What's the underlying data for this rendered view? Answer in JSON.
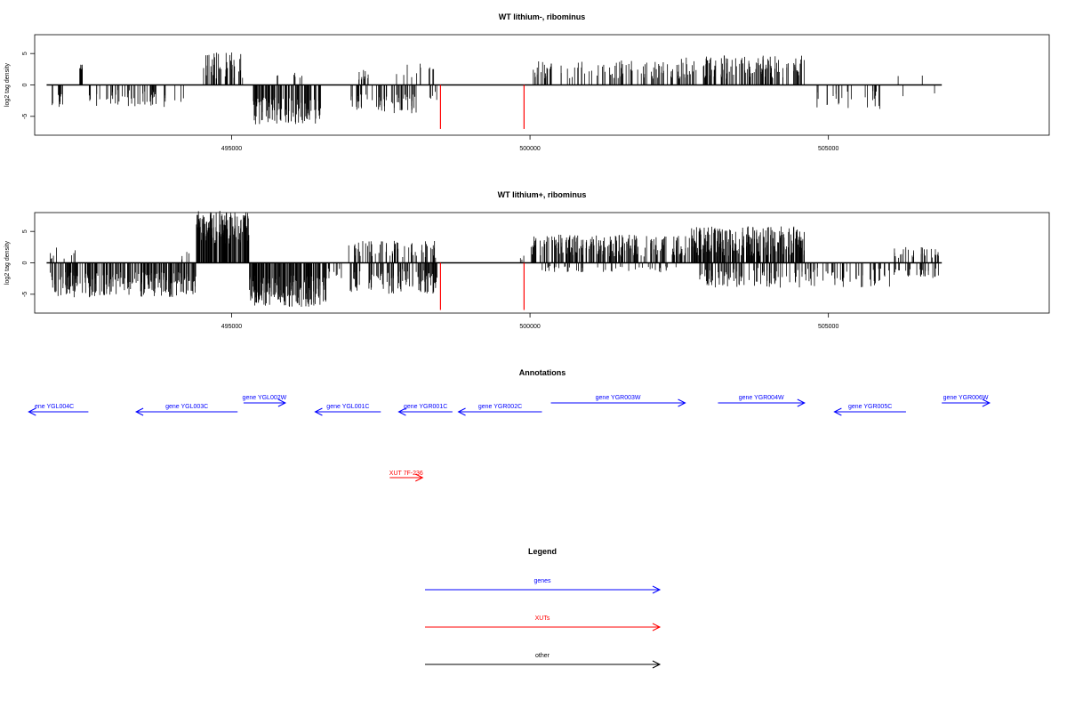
{
  "colors": {
    "gene": "#0000ff",
    "xut": "#ff0000",
    "other": "#000000",
    "bar": "#000000",
    "marker": "#ff0000"
  },
  "chart_data": [
    {
      "type": "bar",
      "title": "WT lithium-, ribominus",
      "xlabel": "",
      "ylabel": "log2 tag density",
      "xlim": [
        491700,
        508700
      ],
      "ylim": [
        -8,
        8
      ],
      "x_ticks": [
        495000,
        500000,
        505000
      ],
      "x_tick_labels": [
        "495000",
        "500000",
        "505000"
      ],
      "y_ticks": [
        5,
        0,
        -5
      ],
      "y_tick_labels": [
        "5",
        "0",
        "-5"
      ],
      "baseline": 0,
      "baseline_extent": [
        491900,
        506900
      ],
      "marker_lines": [
        {
          "x": 498500,
          "y": -7
        },
        {
          "x": 499900,
          "y": -7
        }
      ],
      "segments": [
        {
          "start": 491950,
          "end": 492200,
          "sign": -1,
          "min": 1.0,
          "max": 3.5,
          "density": 0.06
        },
        {
          "start": 492450,
          "end": 492500,
          "sign": 1,
          "min": 2.0,
          "max": 3.4,
          "density": 0.4
        },
        {
          "start": 492600,
          "end": 494200,
          "sign": -1,
          "min": 0.8,
          "max": 3.5,
          "density": 0.05
        },
        {
          "start": 494500,
          "end": 495200,
          "sign": 1,
          "min": 1.0,
          "max": 5.2,
          "density": 0.09
        },
        {
          "start": 495350,
          "end": 496500,
          "sign": -1,
          "min": 2.0,
          "max": 6.3,
          "density": 0.14
        },
        {
          "start": 495650,
          "end": 496200,
          "sign": 1,
          "min": 0.8,
          "max": 2.5,
          "density": 0.02
        },
        {
          "start": 497000,
          "end": 497300,
          "sign": 1,
          "min": 0.8,
          "max": 2.5,
          "density": 0.05
        },
        {
          "start": 497000,
          "end": 497300,
          "sign": -1,
          "min": 1.5,
          "max": 4.0,
          "density": 0.08
        },
        {
          "start": 497350,
          "end": 498100,
          "sign": -1,
          "min": 1.5,
          "max": 4.5,
          "density": 0.08
        },
        {
          "start": 497600,
          "end": 498400,
          "sign": 1,
          "min": 0.8,
          "max": 3.5,
          "density": 0.02
        },
        {
          "start": 498300,
          "end": 498450,
          "sign": -1,
          "min": 1.0,
          "max": 2.5,
          "density": 0.05
        },
        {
          "start": 500050,
          "end": 502800,
          "sign": 1,
          "min": 1.0,
          "max": 4.0,
          "density": 0.05
        },
        {
          "start": 502000,
          "end": 502800,
          "sign": 1,
          "min": 1.0,
          "max": 4.5,
          "density": 0.03
        },
        {
          "start": 502900,
          "end": 504600,
          "sign": 1,
          "min": 1.0,
          "max": 4.8,
          "density": 0.1
        },
        {
          "start": 504600,
          "end": 505900,
          "sign": -1,
          "min": 0.8,
          "max": 4.0,
          "density": 0.03
        },
        {
          "start": 506100,
          "end": 506800,
          "sign": 1,
          "min": 1.0,
          "max": 2.5,
          "density": 0.005
        },
        {
          "start": 506200,
          "end": 506800,
          "sign": -1,
          "min": 1.0,
          "max": 2.5,
          "density": 0.005
        }
      ]
    },
    {
      "type": "bar",
      "title": "WT lithium+, ribominus",
      "xlabel": "",
      "ylabel": "log2 tag density",
      "xlim": [
        491700,
        508700
      ],
      "ylim": [
        -8,
        8
      ],
      "x_ticks": [
        495000,
        500000,
        505000
      ],
      "x_tick_labels": [
        "495000",
        "500000",
        "505000"
      ],
      "y_ticks": [
        5,
        0,
        -5
      ],
      "y_tick_labels": [
        "5",
        "0",
        "-5"
      ],
      "baseline": 0,
      "baseline_extent": [
        491900,
        506900
      ],
      "marker_lines": [
        {
          "x": 498500,
          "y": -7.5
        },
        {
          "x": 499900,
          "y": -7.5
        }
      ],
      "segments": [
        {
          "start": 491950,
          "end": 492400,
          "sign": 1,
          "min": 0.5,
          "max": 2.5,
          "density": 0.03
        },
        {
          "start": 491950,
          "end": 494400,
          "sign": -1,
          "min": 1.5,
          "max": 5.5,
          "density": 0.14
        },
        {
          "start": 494100,
          "end": 494300,
          "sign": 1,
          "min": 0.5,
          "max": 1.8,
          "density": 0.03
        },
        {
          "start": 494400,
          "end": 495300,
          "sign": 1,
          "min": 3.0,
          "max": 8.3,
          "density": 0.25
        },
        {
          "start": 495300,
          "end": 496600,
          "sign": -1,
          "min": 2.0,
          "max": 7.0,
          "density": 0.2
        },
        {
          "start": 496600,
          "end": 496850,
          "sign": -1,
          "min": 0.8,
          "max": 2.5,
          "density": 0.05
        },
        {
          "start": 496950,
          "end": 498450,
          "sign": 1,
          "min": 0.8,
          "max": 3.5,
          "density": 0.06
        },
        {
          "start": 496950,
          "end": 498450,
          "sign": -1,
          "min": 1.0,
          "max": 5.0,
          "density": 0.1
        },
        {
          "start": 499800,
          "end": 499900,
          "sign": 1,
          "min": 0.5,
          "max": 1.2,
          "density": 0.05
        },
        {
          "start": 500000,
          "end": 502600,
          "sign": 1,
          "min": 1.0,
          "max": 4.5,
          "density": 0.12
        },
        {
          "start": 500200,
          "end": 502500,
          "sign": -1,
          "min": 0.5,
          "max": 1.5,
          "density": 0.03
        },
        {
          "start": 502600,
          "end": 504600,
          "sign": 1,
          "min": 1.0,
          "max": 5.8,
          "density": 0.18
        },
        {
          "start": 502800,
          "end": 506100,
          "sign": -1,
          "min": 0.8,
          "max": 4.0,
          "density": 0.06
        },
        {
          "start": 506100,
          "end": 506850,
          "sign": 1,
          "min": 0.8,
          "max": 2.5,
          "density": 0.06
        },
        {
          "start": 506100,
          "end": 506850,
          "sign": -1,
          "min": 0.8,
          "max": 2.5,
          "density": 0.06
        }
      ]
    }
  ],
  "annotations": {
    "title": "Annotations",
    "genes": [
      {
        "label": "ene YGL004C",
        "start": 491600,
        "end": 492600,
        "strand": "-",
        "row": 2
      },
      {
        "label": "gene YGL003C",
        "start": 493400,
        "end": 495100,
        "strand": "-",
        "row": 2
      },
      {
        "label": "gene YGL002W",
        "start": 495200,
        "end": 495900,
        "strand": "+",
        "row": 1
      },
      {
        "label": "gene YGL001C",
        "start": 496400,
        "end": 497500,
        "strand": "-",
        "row": 2
      },
      {
        "label": "gene YGR001C",
        "start": 497800,
        "end": 498700,
        "strand": "-",
        "row": 2
      },
      {
        "label": "gene YGR002C",
        "start": 498800,
        "end": 500200,
        "strand": "-",
        "row": 2
      },
      {
        "label": "gene YGR003W",
        "start": 500350,
        "end": 502600,
        "strand": "+",
        "row": 1
      },
      {
        "label": "gene YGR004W",
        "start": 503150,
        "end": 504600,
        "strand": "+",
        "row": 1
      },
      {
        "label": "gene YGR005C",
        "start": 505100,
        "end": 506300,
        "strand": "-",
        "row": 2
      },
      {
        "label": "gene YGR006W",
        "start": 506900,
        "end": 507700,
        "strand": "+",
        "row": 1
      }
    ],
    "xuts": [
      {
        "label": "XUT 7F-236",
        "start": 497650,
        "end": 498200,
        "strand": "+"
      }
    ]
  },
  "legend": {
    "title": "Legend",
    "items": [
      {
        "label": "genes",
        "color_key": "gene"
      },
      {
        "label": "XUTs",
        "color_key": "xut"
      },
      {
        "label": "other",
        "color_key": "other"
      }
    ]
  }
}
